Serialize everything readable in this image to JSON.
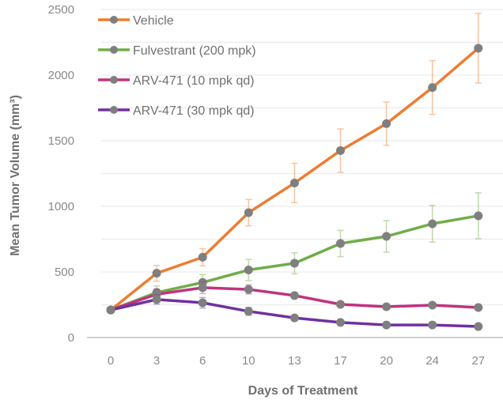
{
  "chart_data": {
    "type": "line",
    "title": "",
    "xlabel": "Days of Treatment",
    "ylabel": "Mean Tumor Volume (mm³)",
    "categories": [
      "0",
      "3",
      "6",
      "10",
      "13",
      "17",
      "20",
      "24",
      "27"
    ],
    "ylim": [
      0,
      2500
    ],
    "yticks": [
      "0",
      "500",
      "1000",
      "1500",
      "2000",
      "2500"
    ],
    "grid_step": 250,
    "grid": true,
    "legend_position": "top-left",
    "marker_color": "#7f7f7f",
    "series": [
      {
        "name": "Vehicle",
        "color": "#ed7d31",
        "values": [
          210,
          490,
          612,
          952,
          1178,
          1425,
          1630,
          1905,
          2205
        ],
        "errors": [
          20,
          60,
          65,
          100,
          150,
          165,
          165,
          205,
          265
        ]
      },
      {
        "name": "Fulvestrant (200 mpk)",
        "color": "#70ad47",
        "values": [
          210,
          343,
          420,
          515,
          566,
          717,
          771,
          867,
          928
        ],
        "errors": [
          20,
          50,
          60,
          80,
          80,
          100,
          120,
          140,
          175
        ]
      },
      {
        "name": "ARV-471 (10 mpk qd)",
        "color": "#c0337f",
        "values": [
          210,
          330,
          380,
          367,
          320,
          253,
          235,
          247,
          229
        ],
        "errors": [
          20,
          40,
          45,
          35,
          20,
          15,
          15,
          15,
          15
        ]
      },
      {
        "name": "ARV-471 (30 mpk qd)",
        "color": "#7030a0",
        "values": [
          210,
          290,
          265,
          200,
          150,
          115,
          96,
          96,
          84
        ],
        "errors": [
          20,
          35,
          40,
          30,
          20,
          12,
          10,
          10,
          10
        ]
      }
    ]
  }
}
